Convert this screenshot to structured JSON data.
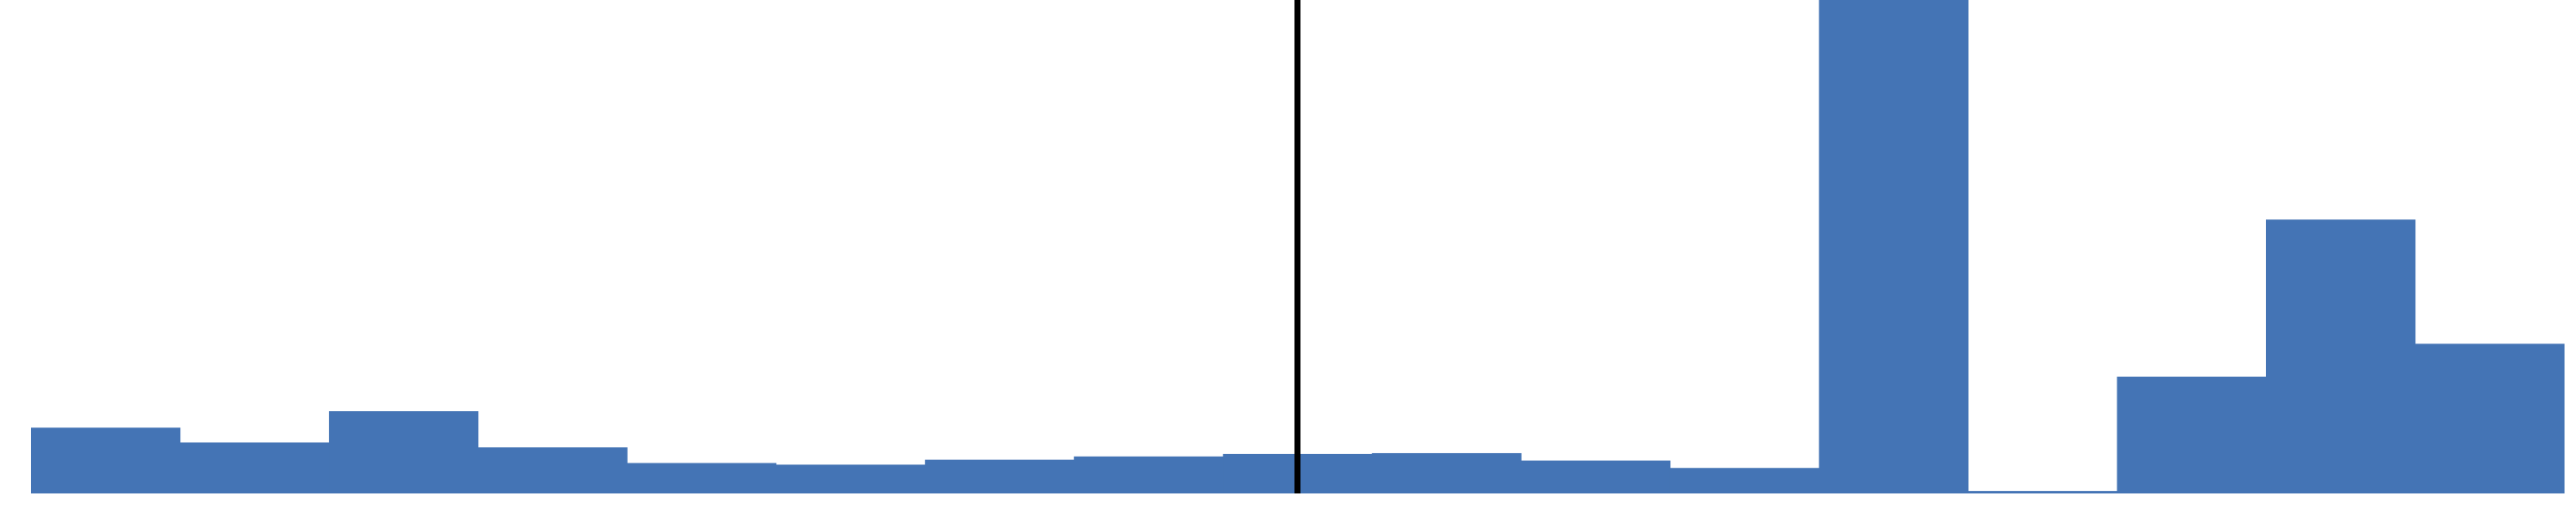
{
  "chart_data": {
    "type": "bar",
    "bar_color": "#4474B5",
    "marker_color": "#000000",
    "background": "#FFFFFF",
    "bin_width": 1,
    "x_start": 0,
    "values": [
      80,
      62,
      100,
      56,
      37,
      35,
      41,
      45,
      48,
      49,
      40,
      31,
      600,
      3,
      142,
      333,
      182
    ],
    "vertical_marker_x": 8.5,
    "ylim": [
      0,
      600
    ],
    "grid": false,
    "legend": "none",
    "title": "",
    "xlabel": "",
    "ylabel": ""
  }
}
